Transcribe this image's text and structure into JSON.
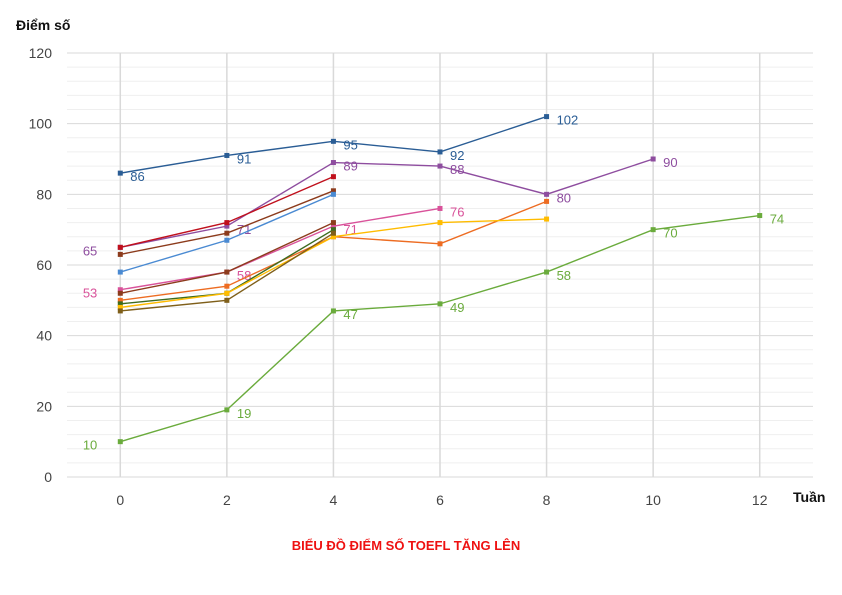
{
  "chart_data": {
    "type": "line",
    "title": "BIỂU ĐỒ ĐIỂM SỐ TOEFL TĂNG LÊN",
    "xlabel": "Tuần",
    "ylabel": "Điểm số",
    "xlim": [
      -1,
      13
    ],
    "ylim": [
      0,
      120
    ],
    "xticks": [
      0,
      2,
      4,
      6,
      8,
      10,
      12
    ],
    "yticks": [
      0,
      20,
      40,
      60,
      80,
      100,
      120
    ],
    "grid": true,
    "legend": "none",
    "series": [
      {
        "name": "s1",
        "color": "#2a5d95",
        "x": [
          0,
          2,
          4,
          6,
          8
        ],
        "y": [
          86,
          91,
          95,
          92,
          102
        ],
        "labels": [
          [
            0,
            "86",
            "right"
          ],
          [
            1,
            "91",
            "right"
          ],
          [
            2,
            "95",
            "right"
          ],
          [
            3,
            "92",
            "right"
          ],
          [
            4,
            "102",
            "right"
          ]
        ]
      },
      {
        "name": "s2",
        "color": "#8e4d9f",
        "x": [
          0,
          2,
          4,
          6,
          8,
          10
        ],
        "y": [
          65,
          71,
          89,
          88,
          80,
          90
        ],
        "labels": [
          [
            0,
            "65",
            "left"
          ],
          [
            1,
            "71",
            "right"
          ],
          [
            2,
            "89",
            "right"
          ],
          [
            3,
            "88",
            "right"
          ],
          [
            4,
            "80",
            "right"
          ],
          [
            5,
            "90",
            "right"
          ]
        ]
      },
      {
        "name": "s3",
        "color": "#c0101c",
        "x": [
          0,
          2,
          4
        ],
        "y": [
          65,
          72,
          85
        ],
        "labels": []
      },
      {
        "name": "s4",
        "color": "#8c3b1c",
        "x": [
          0,
          2,
          4
        ],
        "y": [
          63,
          69,
          81
        ],
        "labels": []
      },
      {
        "name": "s5",
        "color": "#4a8ad2",
        "x": [
          0,
          2,
          4
        ],
        "y": [
          58,
          67,
          80
        ],
        "labels": []
      },
      {
        "name": "s6",
        "color": "#d9529a",
        "x": [
          0,
          2,
          4,
          6
        ],
        "y": [
          53,
          58,
          71,
          76
        ],
        "labels": [
          [
            0,
            "53",
            "left"
          ],
          [
            1,
            "58",
            "right"
          ],
          [
            2,
            "71",
            "right"
          ],
          [
            3,
            "76",
            "right"
          ]
        ]
      },
      {
        "name": "s7",
        "color": "#8c3b1c",
        "x": [
          0,
          2,
          4
        ],
        "y": [
          52,
          58,
          72
        ],
        "labels": []
      },
      {
        "name": "s8",
        "color": "#ed6c22",
        "x": [
          0,
          2,
          4,
          6,
          8
        ],
        "y": [
          50,
          54,
          68,
          66,
          78
        ],
        "labels": []
      },
      {
        "name": "s9",
        "color": "#3d6b1f",
        "x": [
          0,
          2,
          4
        ],
        "y": [
          49,
          52,
          70
        ],
        "labels": []
      },
      {
        "name": "s10",
        "color": "#ffbc00",
        "x": [
          0,
          2,
          4,
          6,
          8
        ],
        "y": [
          48,
          52,
          68,
          72,
          73
        ],
        "labels": []
      },
      {
        "name": "s11",
        "color": "#7f5f1a",
        "x": [
          0,
          2,
          4
        ],
        "y": [
          47,
          50,
          69
        ],
        "labels": []
      },
      {
        "name": "s12",
        "color": "#6aab3c",
        "x": [
          0,
          2,
          4,
          6,
          8,
          10,
          12
        ],
        "y": [
          10,
          19,
          47,
          49,
          58,
          70,
          74
        ],
        "labels": [
          [
            0,
            "10",
            "left"
          ],
          [
            1,
            "19",
            "right"
          ],
          [
            2,
            "47",
            "right"
          ],
          [
            3,
            "49",
            "right"
          ],
          [
            4,
            "58",
            "right"
          ],
          [
            5,
            "70",
            "right"
          ],
          [
            6,
            "74",
            "right"
          ]
        ]
      }
    ]
  }
}
